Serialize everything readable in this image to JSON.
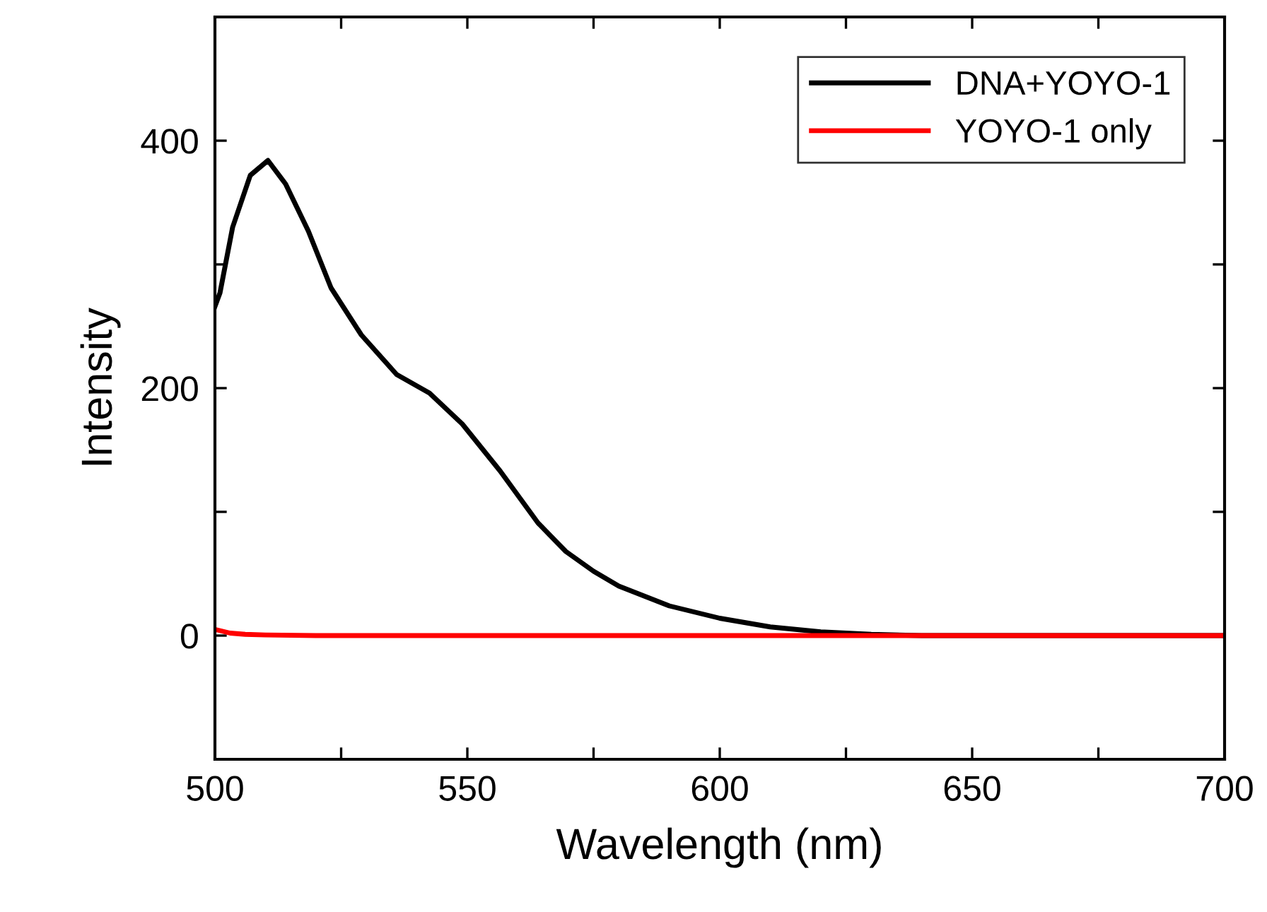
{
  "chart_data": {
    "type": "line",
    "xlabel": "Wavelength (nm)",
    "ylabel": "Intensity",
    "xlim": [
      500,
      700
    ],
    "ylim": [
      -100,
      500
    ],
    "xticks": [
      500,
      {
        "value": 525,
        "label": null
      },
      550,
      {
        "value": 575,
        "label": null
      },
      600,
      {
        "value": 625,
        "label": null
      },
      650,
      {
        "value": 675,
        "label": null
      },
      700
    ],
    "yticks": [
      {
        "value": -100,
        "label": null
      },
      0,
      {
        "value": 100,
        "label": null
      },
      200,
      {
        "value": 300,
        "label": null
      },
      400,
      {
        "value": 500,
        "label": null
      }
    ],
    "legend": "top right",
    "grid": false,
    "marker": "none",
    "line_style": "solid",
    "series": [
      {
        "name": "DNA+YOYO-1",
        "color": "#000000",
        "x": [
          500,
          501,
          503.5,
          507,
          510.5,
          514,
          518.5,
          523,
          529,
          536,
          542.5,
          549,
          556.5,
          564,
          569.5,
          575,
          580,
          590,
          600,
          610,
          620,
          630,
          640,
          660,
          700
        ],
        "values": [
          266,
          277,
          330,
          372,
          384,
          365,
          327,
          281,
          243,
          211,
          196,
          171,
          133,
          91,
          68,
          52,
          40,
          24,
          14,
          7,
          3,
          1,
          0,
          0,
          0
        ]
      },
      {
        "name": "YOYO-1 only",
        "color": "#ff0000",
        "x": [
          500,
          503,
          506,
          510,
          520,
          600,
          700
        ],
        "values": [
          5,
          2,
          1,
          0.5,
          0,
          0,
          0
        ]
      }
    ]
  }
}
